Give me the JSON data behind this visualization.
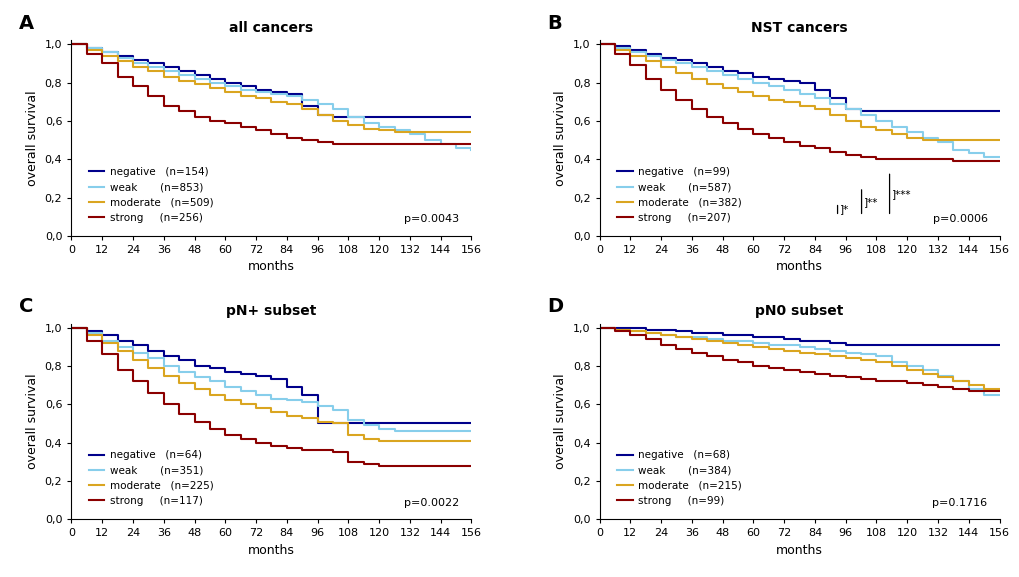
{
  "panels": [
    {
      "label": "A",
      "title": "all cancers",
      "pvalue": "p=0.0043",
      "legend_entries": [
        {
          "name": "negative",
          "n": "n=154",
          "color": "#00008B"
        },
        {
          "name": "weak",
          "n": "n=853",
          "color": "#87CEEB"
        },
        {
          "name": "moderate",
          "n": "n=509",
          "color": "#DAA520"
        },
        {
          "name": "strong",
          "n": "n=256",
          "color": "#8B0000"
        }
      ],
      "curves": [
        {
          "color": "#00008B",
          "x": [
            0,
            6,
            12,
            18,
            24,
            30,
            36,
            42,
            48,
            54,
            60,
            66,
            72,
            78,
            84,
            90,
            96,
            102,
            108,
            114,
            120,
            126,
            132,
            138,
            144,
            150,
            156
          ],
          "y": [
            1.0,
            0.98,
            0.96,
            0.94,
            0.92,
            0.9,
            0.88,
            0.86,
            0.84,
            0.82,
            0.8,
            0.78,
            0.76,
            0.75,
            0.74,
            0.68,
            0.63,
            0.62,
            0.62,
            0.62,
            0.62,
            0.62,
            0.62,
            0.62,
            0.62,
            0.62,
            0.62
          ]
        },
        {
          "color": "#87CEEB",
          "x": [
            0,
            6,
            12,
            18,
            24,
            30,
            36,
            42,
            48,
            54,
            60,
            66,
            72,
            78,
            84,
            90,
            96,
            102,
            108,
            114,
            120,
            126,
            132,
            138,
            144,
            150,
            156
          ],
          "y": [
            1.0,
            0.98,
            0.96,
            0.93,
            0.9,
            0.88,
            0.86,
            0.84,
            0.82,
            0.8,
            0.78,
            0.76,
            0.75,
            0.74,
            0.73,
            0.71,
            0.69,
            0.66,
            0.62,
            0.59,
            0.57,
            0.55,
            0.53,
            0.5,
            0.48,
            0.46,
            0.45
          ]
        },
        {
          "color": "#DAA520",
          "x": [
            0,
            6,
            12,
            18,
            24,
            30,
            36,
            42,
            48,
            54,
            60,
            66,
            72,
            78,
            84,
            90,
            96,
            102,
            108,
            114,
            120,
            126,
            132,
            138,
            144,
            150,
            156
          ],
          "y": [
            1.0,
            0.97,
            0.94,
            0.91,
            0.88,
            0.86,
            0.83,
            0.81,
            0.79,
            0.77,
            0.75,
            0.73,
            0.72,
            0.7,
            0.69,
            0.66,
            0.63,
            0.6,
            0.58,
            0.56,
            0.55,
            0.54,
            0.54,
            0.54,
            0.54,
            0.54,
            0.54
          ]
        },
        {
          "color": "#8B0000",
          "x": [
            0,
            6,
            12,
            18,
            24,
            30,
            36,
            42,
            48,
            54,
            60,
            66,
            72,
            78,
            84,
            90,
            96,
            102,
            108,
            114,
            120,
            126,
            132,
            138,
            144,
            150,
            156
          ],
          "y": [
            1.0,
            0.95,
            0.9,
            0.83,
            0.78,
            0.73,
            0.68,
            0.65,
            0.62,
            0.6,
            0.59,
            0.57,
            0.55,
            0.53,
            0.51,
            0.5,
            0.49,
            0.48,
            0.48,
            0.48,
            0.48,
            0.48,
            0.48,
            0.48,
            0.48,
            0.48,
            0.48
          ]
        }
      ],
      "show_bracket": false
    },
    {
      "label": "B",
      "title": "NST cancers",
      "pvalue": "p=0.0006",
      "legend_entries": [
        {
          "name": "negative",
          "n": "n=99",
          "color": "#00008B"
        },
        {
          "name": "weak",
          "n": "n=587",
          "color": "#87CEEB"
        },
        {
          "name": "moderate",
          "n": "n=382",
          "color": "#DAA520"
        },
        {
          "name": "strong",
          "n": "n=207",
          "color": "#8B0000"
        }
      ],
      "curves": [
        {
          "color": "#00008B",
          "x": [
            0,
            6,
            12,
            18,
            24,
            30,
            36,
            42,
            48,
            54,
            60,
            66,
            72,
            78,
            84,
            90,
            96,
            102,
            108,
            114,
            120,
            126,
            132,
            138,
            144,
            150,
            156
          ],
          "y": [
            1.0,
            0.99,
            0.97,
            0.95,
            0.93,
            0.92,
            0.9,
            0.88,
            0.86,
            0.85,
            0.83,
            0.82,
            0.81,
            0.8,
            0.76,
            0.72,
            0.66,
            0.65,
            0.65,
            0.65,
            0.65,
            0.65,
            0.65,
            0.65,
            0.65,
            0.65,
            0.65
          ]
        },
        {
          "color": "#87CEEB",
          "x": [
            0,
            6,
            12,
            18,
            24,
            30,
            36,
            42,
            48,
            54,
            60,
            66,
            72,
            78,
            84,
            90,
            96,
            102,
            108,
            114,
            120,
            126,
            132,
            138,
            144,
            150,
            156
          ],
          "y": [
            1.0,
            0.98,
            0.96,
            0.94,
            0.92,
            0.9,
            0.88,
            0.86,
            0.84,
            0.82,
            0.8,
            0.78,
            0.76,
            0.74,
            0.72,
            0.69,
            0.66,
            0.63,
            0.6,
            0.57,
            0.54,
            0.51,
            0.49,
            0.45,
            0.43,
            0.41,
            0.41
          ]
        },
        {
          "color": "#DAA520",
          "x": [
            0,
            6,
            12,
            18,
            24,
            30,
            36,
            42,
            48,
            54,
            60,
            66,
            72,
            78,
            84,
            90,
            96,
            102,
            108,
            114,
            120,
            126,
            132,
            138,
            144,
            150,
            156
          ],
          "y": [
            1.0,
            0.97,
            0.94,
            0.91,
            0.88,
            0.85,
            0.82,
            0.79,
            0.77,
            0.75,
            0.73,
            0.71,
            0.7,
            0.68,
            0.66,
            0.63,
            0.6,
            0.57,
            0.55,
            0.53,
            0.51,
            0.5,
            0.5,
            0.5,
            0.5,
            0.5,
            0.5
          ]
        },
        {
          "color": "#8B0000",
          "x": [
            0,
            6,
            12,
            18,
            24,
            30,
            36,
            42,
            48,
            54,
            60,
            66,
            72,
            78,
            84,
            90,
            96,
            102,
            108,
            114,
            120,
            126,
            132,
            138,
            144,
            150,
            156
          ],
          "y": [
            1.0,
            0.95,
            0.89,
            0.82,
            0.76,
            0.71,
            0.66,
            0.62,
            0.59,
            0.56,
            0.53,
            0.51,
            0.49,
            0.47,
            0.46,
            0.44,
            0.42,
            0.41,
            0.4,
            0.4,
            0.4,
            0.4,
            0.4,
            0.39,
            0.39,
            0.39,
            0.39
          ]
        }
      ],
      "show_bracket": true
    },
    {
      "label": "C",
      "title": "pN+ subset",
      "pvalue": "p=0.0022",
      "legend_entries": [
        {
          "name": "negative",
          "n": "n=64",
          "color": "#00008B"
        },
        {
          "name": "weak",
          "n": "n=351",
          "color": "#87CEEB"
        },
        {
          "name": "moderate",
          "n": "n=225",
          "color": "#DAA520"
        },
        {
          "name": "strong",
          "n": "n=117",
          "color": "#8B0000"
        }
      ],
      "curves": [
        {
          "color": "#00008B",
          "x": [
            0,
            6,
            12,
            18,
            24,
            30,
            36,
            42,
            48,
            54,
            60,
            66,
            72,
            78,
            84,
            90,
            96,
            102,
            108,
            114,
            120,
            126,
            132,
            138,
            144,
            150,
            156
          ],
          "y": [
            1.0,
            0.98,
            0.96,
            0.93,
            0.91,
            0.88,
            0.85,
            0.83,
            0.8,
            0.79,
            0.77,
            0.76,
            0.75,
            0.73,
            0.69,
            0.65,
            0.5,
            0.5,
            0.5,
            0.5,
            0.5,
            0.5,
            0.5,
            0.5,
            0.5,
            0.5,
            0.5
          ]
        },
        {
          "color": "#87CEEB",
          "x": [
            0,
            6,
            12,
            18,
            24,
            30,
            36,
            42,
            48,
            54,
            60,
            66,
            72,
            78,
            84,
            90,
            96,
            102,
            108,
            114,
            120,
            126,
            132,
            138,
            144,
            150,
            156
          ],
          "y": [
            1.0,
            0.97,
            0.93,
            0.9,
            0.87,
            0.84,
            0.8,
            0.77,
            0.74,
            0.72,
            0.69,
            0.67,
            0.65,
            0.63,
            0.62,
            0.61,
            0.59,
            0.57,
            0.52,
            0.49,
            0.47,
            0.46,
            0.46,
            0.46,
            0.46,
            0.46,
            0.46
          ]
        },
        {
          "color": "#DAA520",
          "x": [
            0,
            6,
            12,
            18,
            24,
            30,
            36,
            42,
            48,
            54,
            60,
            66,
            72,
            78,
            84,
            90,
            96,
            102,
            108,
            114,
            120,
            126,
            132,
            138,
            144,
            150,
            156
          ],
          "y": [
            1.0,
            0.96,
            0.92,
            0.88,
            0.83,
            0.79,
            0.75,
            0.71,
            0.68,
            0.65,
            0.62,
            0.6,
            0.58,
            0.56,
            0.54,
            0.53,
            0.51,
            0.5,
            0.44,
            0.42,
            0.41,
            0.41,
            0.41,
            0.41,
            0.41,
            0.41,
            0.41
          ]
        },
        {
          "color": "#8B0000",
          "x": [
            0,
            6,
            12,
            18,
            24,
            30,
            36,
            42,
            48,
            54,
            60,
            66,
            72,
            78,
            84,
            90,
            96,
            102,
            108,
            114,
            120,
            126,
            132,
            138,
            144,
            150,
            156
          ],
          "y": [
            1.0,
            0.93,
            0.86,
            0.78,
            0.72,
            0.66,
            0.6,
            0.55,
            0.51,
            0.47,
            0.44,
            0.42,
            0.4,
            0.38,
            0.37,
            0.36,
            0.36,
            0.35,
            0.3,
            0.29,
            0.28,
            0.28,
            0.28,
            0.28,
            0.28,
            0.28,
            0.28
          ]
        }
      ],
      "show_bracket": false
    },
    {
      "label": "D",
      "title": "pN0 subset",
      "pvalue": "p=0.1716",
      "legend_entries": [
        {
          "name": "negative",
          "n": "n=68",
          "color": "#00008B"
        },
        {
          "name": "weak",
          "n": "n=384",
          "color": "#87CEEB"
        },
        {
          "name": "moderate",
          "n": "n=215",
          "color": "#DAA520"
        },
        {
          "name": "strong",
          "n": "n=99",
          "color": "#8B0000"
        }
      ],
      "curves": [
        {
          "color": "#00008B",
          "x": [
            0,
            6,
            12,
            18,
            24,
            30,
            36,
            42,
            48,
            54,
            60,
            66,
            72,
            78,
            84,
            90,
            96,
            102,
            108,
            114,
            120,
            126,
            132,
            138,
            144,
            150,
            156
          ],
          "y": [
            1.0,
            1.0,
            1.0,
            0.99,
            0.99,
            0.98,
            0.97,
            0.97,
            0.96,
            0.96,
            0.95,
            0.95,
            0.94,
            0.93,
            0.93,
            0.92,
            0.91,
            0.91,
            0.91,
            0.91,
            0.91,
            0.91,
            0.91,
            0.91,
            0.91,
            0.91,
            0.91
          ]
        },
        {
          "color": "#87CEEB",
          "x": [
            0,
            6,
            12,
            18,
            24,
            30,
            36,
            42,
            48,
            54,
            60,
            66,
            72,
            78,
            84,
            90,
            96,
            102,
            108,
            114,
            120,
            126,
            132,
            138,
            144,
            150,
            156
          ],
          "y": [
            1.0,
            0.99,
            0.98,
            0.97,
            0.96,
            0.95,
            0.95,
            0.94,
            0.93,
            0.93,
            0.92,
            0.91,
            0.91,
            0.9,
            0.89,
            0.88,
            0.87,
            0.86,
            0.85,
            0.82,
            0.8,
            0.78,
            0.75,
            0.72,
            0.68,
            0.65,
            0.65
          ]
        },
        {
          "color": "#DAA520",
          "x": [
            0,
            6,
            12,
            18,
            24,
            30,
            36,
            42,
            48,
            54,
            60,
            66,
            72,
            78,
            84,
            90,
            96,
            102,
            108,
            114,
            120,
            126,
            132,
            138,
            144,
            150,
            156
          ],
          "y": [
            1.0,
            0.99,
            0.98,
            0.97,
            0.96,
            0.95,
            0.94,
            0.93,
            0.92,
            0.91,
            0.9,
            0.89,
            0.88,
            0.87,
            0.86,
            0.85,
            0.84,
            0.83,
            0.82,
            0.8,
            0.78,
            0.76,
            0.74,
            0.72,
            0.7,
            0.68,
            0.68
          ]
        },
        {
          "color": "#8B0000",
          "x": [
            0,
            6,
            12,
            18,
            24,
            30,
            36,
            42,
            48,
            54,
            60,
            66,
            72,
            78,
            84,
            90,
            96,
            102,
            108,
            114,
            120,
            126,
            132,
            138,
            144,
            150,
            156
          ],
          "y": [
            1.0,
            0.98,
            0.96,
            0.94,
            0.91,
            0.89,
            0.87,
            0.85,
            0.83,
            0.82,
            0.8,
            0.79,
            0.78,
            0.77,
            0.76,
            0.75,
            0.74,
            0.73,
            0.72,
            0.72,
            0.71,
            0.7,
            0.69,
            0.68,
            0.67,
            0.67,
            0.67
          ]
        }
      ],
      "show_bracket": false
    }
  ],
  "xticks": [
    0,
    12,
    24,
    36,
    48,
    60,
    72,
    84,
    96,
    108,
    120,
    132,
    144,
    156
  ],
  "yticks": [
    0.0,
    0.2,
    0.4,
    0.6,
    0.8,
    1.0
  ],
  "ytick_labels": [
    "0,0",
    "0,2",
    "0,4",
    "0,6",
    "0,8",
    "1,0"
  ],
  "xlabel": "months",
  "ylabel": "overall survival",
  "xlim": [
    0,
    156
  ],
  "ylim": [
    0.0,
    1.02
  ],
  "bg_color": "#FFFFFF",
  "panel_bg": "#FFFFFF",
  "linewidth": 1.5
}
